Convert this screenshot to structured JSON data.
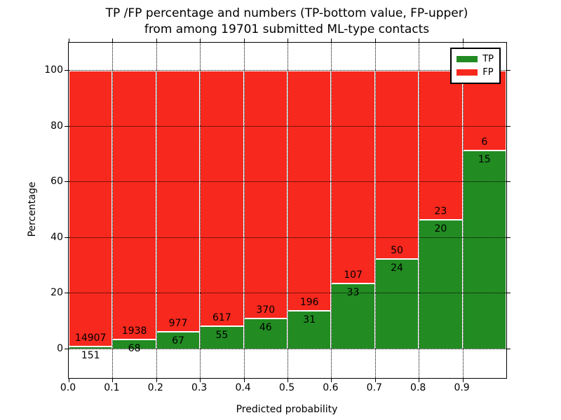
{
  "title": {
    "line1": "TP /FP percentage and numbers (TP-bottom value, FP-upper)",
    "line2": "from among 19701 submitted ML-type contacts"
  },
  "chart_data": {
    "type": "bar",
    "stacked": true,
    "title": "TP /FP percentage and numbers (TP-bottom value, FP-upper) from among 19701 submitted ML-type contacts",
    "xlabel": "Predicted probability",
    "ylabel": "Percentage",
    "xlim": [
      0.0,
      1.0
    ],
    "ylim": [
      -10,
      110
    ],
    "grid": "dotted black, horizontal at y ticks and vertical at x ticks",
    "legend_position": "upper right",
    "xticks": [
      "0.0",
      "0.1",
      "0.2",
      "0.3",
      "0.4",
      "0.5",
      "0.6",
      "0.7",
      "0.8",
      "0.9"
    ],
    "yticks": [
      "0",
      "20",
      "40",
      "60",
      "80",
      "100"
    ],
    "ytick_values": [
      0,
      20,
      40,
      60,
      80,
      100
    ],
    "legend": [
      {
        "label": "TP",
        "color": "#228b22"
      },
      {
        "label": "FP",
        "color": "#f7281d"
      }
    ],
    "colors": {
      "tp": "#228b22",
      "fp": "#f7281d",
      "bar_edge": "#ffffff"
    },
    "bars": [
      {
        "x_range": "0.0-0.1",
        "tp": 151,
        "fp": 14907,
        "tp_pct": 1.0,
        "fp_pct": 99.0
      },
      {
        "x_range": "0.1-0.2",
        "tp": 68,
        "fp": 1938,
        "tp_pct": 3.4,
        "fp_pct": 96.6
      },
      {
        "x_range": "0.2-0.3",
        "tp": 67,
        "fp": 977,
        "tp_pct": 6.4,
        "fp_pct": 93.6
      },
      {
        "x_range": "0.3-0.4",
        "tp": 55,
        "fp": 617,
        "tp_pct": 8.2,
        "fp_pct": 91.8
      },
      {
        "x_range": "0.4-0.5",
        "tp": 46,
        "fp": 370,
        "tp_pct": 11.1,
        "fp_pct": 88.9
      },
      {
        "x_range": "0.5-0.6",
        "tp": 31,
        "fp": 196,
        "tp_pct": 13.7,
        "fp_pct": 86.3
      },
      {
        "x_range": "0.6-0.7",
        "tp": 33,
        "fp": 107,
        "tp_pct": 23.6,
        "fp_pct": 76.4
      },
      {
        "x_range": "0.7-0.8",
        "tp": 24,
        "fp": 50,
        "tp_pct": 32.4,
        "fp_pct": 67.6
      },
      {
        "x_range": "0.8-0.9",
        "tp": 20,
        "fp": 23,
        "tp_pct": 46.5,
        "fp_pct": 53.5
      },
      {
        "x_range": "0.9-1.0",
        "tp": 15,
        "fp": 6,
        "tp_pct": 71.4,
        "fp_pct": 28.6
      }
    ]
  }
}
